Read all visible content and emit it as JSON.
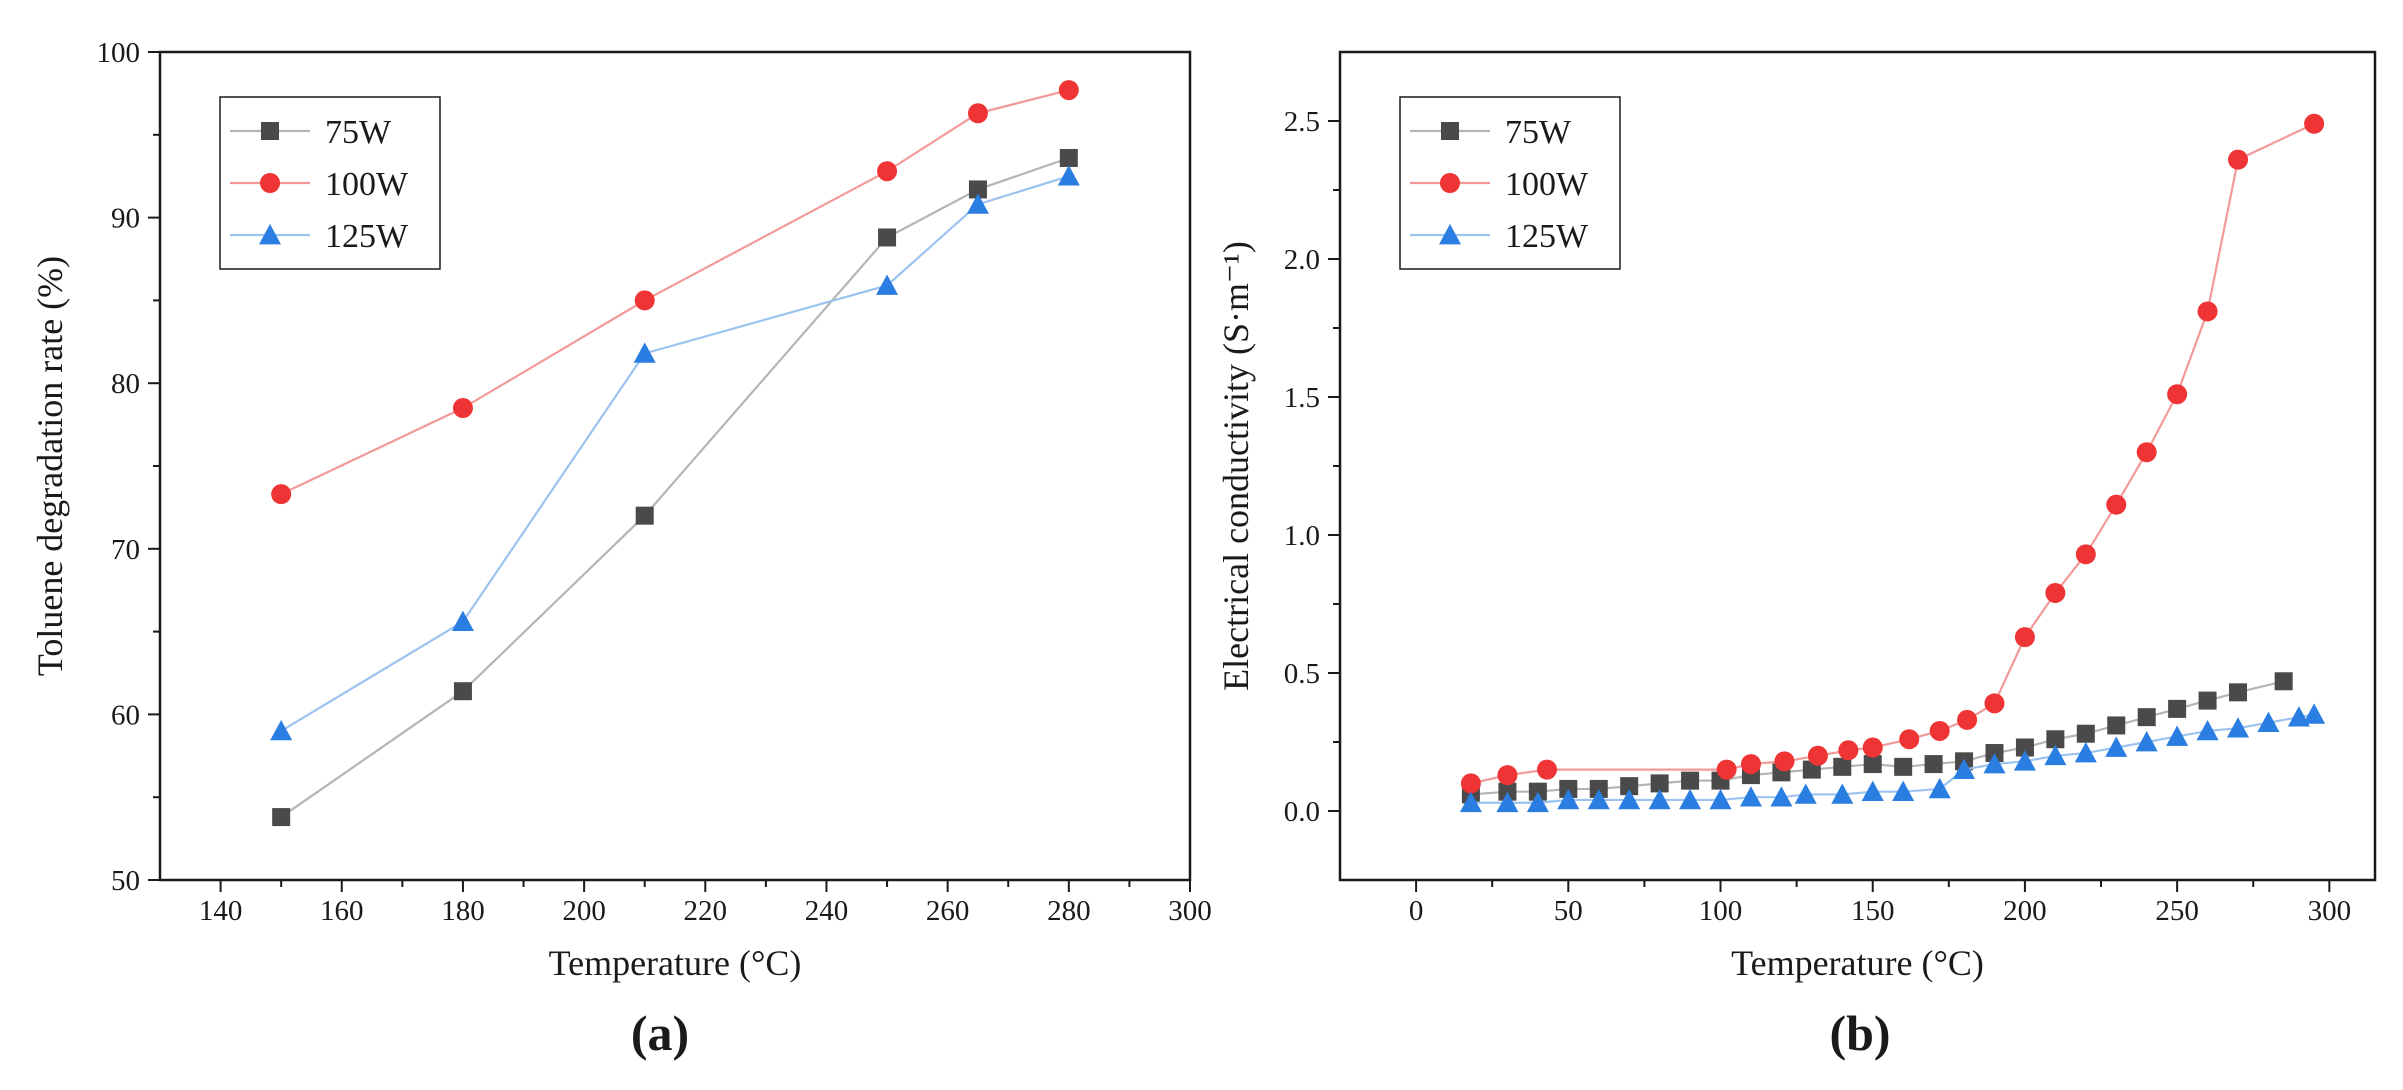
{
  "chart_data": [
    {
      "type": "line",
      "panel_label": "(a)",
      "xlabel": "Temperature (°C)",
      "ylabel": "Toluene degradation rate (%)",
      "xlim": [
        130,
        300
      ],
      "ylim": [
        50,
        100
      ],
      "xticks": [
        140,
        160,
        180,
        200,
        220,
        240,
        260,
        280,
        300
      ],
      "yticks": [
        50,
        60,
        70,
        80,
        90,
        100
      ],
      "legend_position": "top-left",
      "series": [
        {
          "name": "75W",
          "color": "#4a4a4a",
          "line_color": "#b5b5b5",
          "marker": "square",
          "x": [
            150,
            180,
            210,
            250,
            265,
            280
          ],
          "y": [
            53.8,
            61.4,
            72.0,
            88.8,
            91.7,
            93.6
          ]
        },
        {
          "name": "100W",
          "color": "#ee3434",
          "line_color": "#f29a9a",
          "marker": "circle",
          "x": [
            150,
            180,
            210,
            250,
            265,
            280
          ],
          "y": [
            73.3,
            78.5,
            85.0,
            92.8,
            96.3,
            97.7
          ]
        },
        {
          "name": "125W",
          "color": "#2a7de1",
          "line_color": "#9cc3f0",
          "marker": "triangle",
          "x": [
            150,
            180,
            210,
            250,
            265,
            280
          ],
          "y": [
            59.0,
            65.6,
            81.8,
            85.9,
            90.8,
            92.5
          ]
        }
      ]
    },
    {
      "type": "line",
      "panel_label": "(b)",
      "xlabel": "Temperature (°C)",
      "ylabel": "Electrical conductivity (S·m⁻¹)",
      "xlim": [
        -25,
        315
      ],
      "ylim": [
        -0.25,
        2.75
      ],
      "xticks": [
        0,
        50,
        100,
        150,
        200,
        250,
        300
      ],
      "yticks": [
        0.0,
        0.5,
        1.0,
        1.5,
        2.0,
        2.5
      ],
      "ytick_labels": [
        "0.0",
        "0.5",
        "1.0",
        "1.5",
        "2.0",
        "2.5"
      ],
      "legend_position": "top-left",
      "series": [
        {
          "name": "75W",
          "color": "#4a4a4a",
          "line_color": "#b5b5b5",
          "marker": "square",
          "x": [
            18,
            30,
            40,
            50,
            60,
            70,
            80,
            90,
            100,
            110,
            120,
            130,
            140,
            150,
            160,
            170,
            180,
            190,
            200,
            210,
            220,
            230,
            240,
            250,
            260,
            270,
            285
          ],
          "y": [
            0.06,
            0.07,
            0.07,
            0.08,
            0.08,
            0.09,
            0.1,
            0.11,
            0.11,
            0.13,
            0.14,
            0.15,
            0.16,
            0.17,
            0.16,
            0.17,
            0.18,
            0.21,
            0.23,
            0.26,
            0.28,
            0.31,
            0.34,
            0.37,
            0.4,
            0.43,
            0.47
          ]
        },
        {
          "name": "100W",
          "color": "#ee3434",
          "line_color": "#f29a9a",
          "marker": "circle",
          "x": [
            18,
            30,
            43,
            102,
            110,
            121,
            132,
            142,
            150,
            162,
            172,
            181,
            190,
            200,
            210,
            220,
            230,
            240,
            250,
            260,
            270,
            295
          ],
          "y": [
            0.1,
            0.13,
            0.15,
            0.15,
            0.17,
            0.18,
            0.2,
            0.22,
            0.23,
            0.26,
            0.29,
            0.33,
            0.39,
            0.63,
            0.79,
            0.93,
            1.11,
            1.3,
            1.51,
            1.81,
            2.36,
            2.49
          ]
        },
        {
          "name": "125W",
          "color": "#2a7de1",
          "line_color": "#9cc3f0",
          "marker": "triangle",
          "x": [
            18,
            30,
            40,
            50,
            60,
            70,
            80,
            90,
            100,
            110,
            120,
            128,
            140,
            150,
            160,
            172,
            180,
            190,
            200,
            210,
            220,
            230,
            240,
            250,
            260,
            270,
            280,
            290,
            295
          ],
          "y": [
            0.03,
            0.03,
            0.03,
            0.04,
            0.04,
            0.04,
            0.04,
            0.04,
            0.04,
            0.05,
            0.05,
            0.06,
            0.06,
            0.07,
            0.07,
            0.08,
            0.15,
            0.17,
            0.18,
            0.2,
            0.21,
            0.23,
            0.25,
            0.27,
            0.29,
            0.3,
            0.32,
            0.34,
            0.35
          ]
        }
      ]
    }
  ]
}
